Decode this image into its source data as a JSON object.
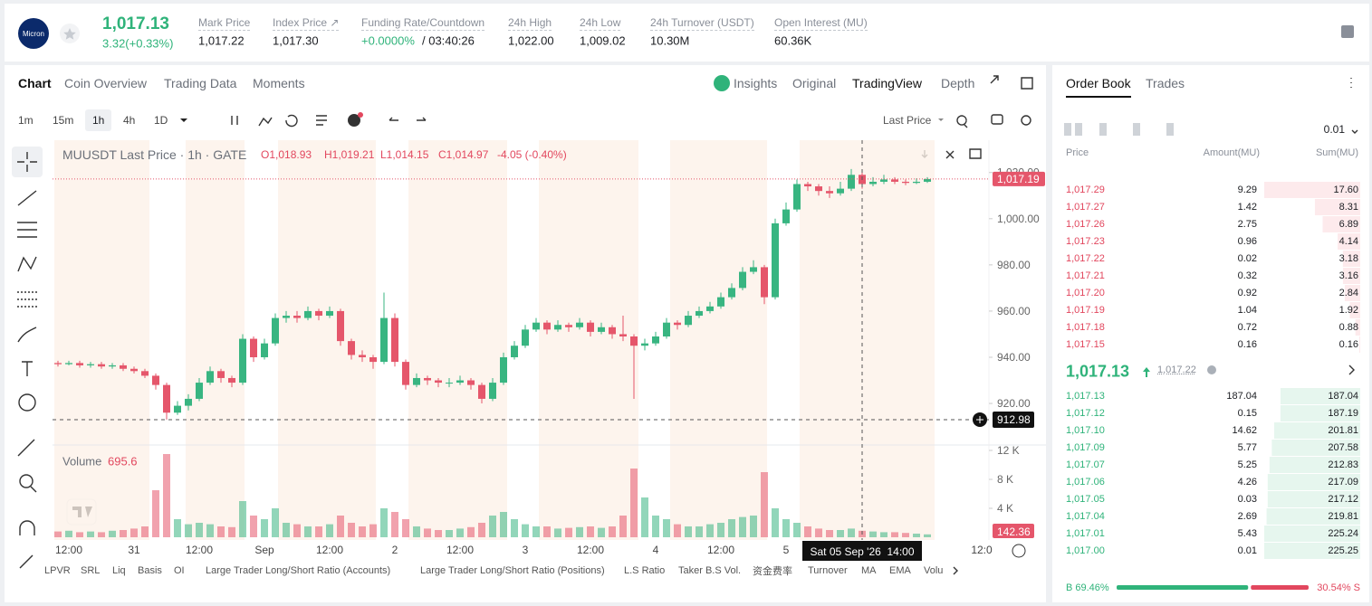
{
  "header": {
    "logo": "Micron",
    "price": "1,017.13",
    "change": "3.32(+0.33%)",
    "stats": [
      {
        "label": "Mark Price",
        "value": "1,017.22"
      },
      {
        "label": "Index Price ↗",
        "value": "1,017.30"
      },
      {
        "label": "Funding Rate/Countdown",
        "value": "+0.0000%",
        "countdown": "/ 03:40:26"
      },
      {
        "label": "24h High",
        "value": "1,022.00"
      },
      {
        "label": "24h Low",
        "value": "1,009.02"
      },
      {
        "label": "24h Turnover (USDT)",
        "value": "10.30M"
      },
      {
        "label": "Open Interest (MU)",
        "value": "60.36K"
      }
    ]
  },
  "chart_tabs": [
    "Chart",
    "Coin Overview",
    "Trading Data",
    "Moments"
  ],
  "view_tabs": [
    "Insights",
    "Original",
    "TradingView",
    "Depth"
  ],
  "intervals": [
    "1m",
    "15m",
    "1h",
    "4h",
    "1D"
  ],
  "price_source": "Last Price",
  "indicators": [
    "LPVR",
    "SRL",
    "Liq",
    "Basis",
    "OI",
    "Large Trader Long/Short Ratio (Accounts)",
    "Large Trader Long/Short Ratio (Positions)",
    "L.S Ratio",
    "Taker B.S Vol.",
    "资金费率",
    "Turnover",
    "MA",
    "EMA",
    "Volu"
  ],
  "chart_data": {
    "type": "candlestick",
    "title": "MUUSDT Last Price · 1h · GATE",
    "ohlc_labels": [
      "O1,018.93",
      "H1,019.21",
      "L1,014.15",
      "C1,014.97"
    ],
    "change": "-4.05 (-0.40%)",
    "colors": {
      "up": "#38b581",
      "down": "#e5566b"
    },
    "candles": [
      [
        937.5,
        938.5,
        936,
        937
      ],
      [
        937,
        938.5,
        936.5,
        937.5
      ],
      [
        937.5,
        938.5,
        935.5,
        936.5
      ],
      [
        936.5,
        938,
        935.5,
        937
      ],
      [
        937,
        938,
        935,
        936
      ],
      [
        936,
        937.5,
        935,
        936.5
      ],
      [
        936.5,
        937.5,
        934,
        935
      ],
      [
        935,
        936,
        933,
        934
      ],
      [
        934,
        935,
        931,
        932
      ],
      [
        932,
        933,
        926,
        928
      ],
      [
        928,
        929,
        913,
        916
      ],
      [
        916,
        921,
        915,
        919
      ],
      [
        919,
        924,
        917,
        922
      ],
      [
        922,
        931,
        921,
        929
      ],
      [
        929,
        936,
        928,
        934
      ],
      [
        934,
        935,
        929,
        931
      ],
      [
        931,
        932,
        927,
        929
      ],
      [
        929,
        950,
        928,
        948
      ],
      [
        948,
        949,
        938,
        940
      ],
      [
        940,
        948,
        939,
        946
      ],
      [
        946,
        959,
        945,
        957
      ],
      [
        957,
        960,
        955,
        958
      ],
      [
        958,
        960,
        955,
        957
      ],
      [
        957,
        962,
        956,
        960
      ],
      [
        960,
        961,
        956,
        958
      ],
      [
        958,
        962,
        957,
        960
      ],
      [
        960,
        961,
        945,
        947
      ],
      [
        947,
        948,
        939,
        941
      ],
      [
        941,
        943,
        938,
        940
      ],
      [
        940,
        941,
        935,
        938
      ],
      [
        938,
        968,
        937,
        957
      ],
      [
        957,
        959,
        936,
        938
      ],
      [
        938,
        939,
        926,
        928
      ],
      [
        928,
        933,
        927,
        931
      ],
      [
        931,
        932,
        928,
        930
      ],
      [
        930,
        931,
        927,
        929
      ],
      [
        929,
        931,
        927,
        929
      ],
      [
        929,
        932,
        928,
        930
      ],
      [
        930,
        931,
        926,
        928
      ],
      [
        928,
        929,
        920,
        922
      ],
      [
        922,
        931,
        921,
        929
      ],
      [
        929,
        942,
        928,
        940
      ],
      [
        940,
        947,
        939,
        945
      ],
      [
        945,
        954,
        944,
        952
      ],
      [
        952,
        957,
        951,
        955
      ],
      [
        955,
        956,
        950,
        952
      ],
      [
        952,
        956,
        951,
        954
      ],
      [
        954,
        955,
        951,
        953
      ],
      [
        953,
        957,
        952,
        955
      ],
      [
        955,
        956,
        949,
        951
      ],
      [
        951,
        955,
        950,
        953
      ],
      [
        953,
        954,
        948,
        950
      ],
      [
        950,
        958,
        947,
        949
      ],
      [
        949,
        950,
        922,
        945
      ],
      [
        945,
        948,
        943,
        946
      ],
      [
        946,
        951,
        945,
        949
      ],
      [
        949,
        957,
        948,
        955
      ],
      [
        955,
        956,
        952,
        954
      ],
      [
        954,
        960,
        953,
        958
      ],
      [
        958,
        962,
        957,
        960
      ],
      [
        960,
        964,
        959,
        962
      ],
      [
        962,
        968,
        961,
        966
      ],
      [
        966,
        972,
        965,
        970
      ],
      [
        970,
        979,
        969,
        977
      ],
      [
        977,
        982,
        976,
        979
      ],
      [
        979,
        980,
        963,
        966
      ],
      [
        966,
        1000,
        965,
        998
      ],
      [
        998,
        1007,
        997,
        1004
      ],
      [
        1004,
        1017,
        1003,
        1015
      ],
      [
        1015,
        1016,
        1012,
        1014
      ],
      [
        1014,
        1015,
        1010,
        1012
      ],
      [
        1012,
        1014,
        1009,
        1011
      ],
      [
        1011,
        1016,
        1010,
        1013
      ],
      [
        1013,
        1021.5,
        1012,
        1019
      ],
      [
        1019,
        1020,
        1013,
        1015
      ],
      [
        1015,
        1018,
        1014,
        1016
      ],
      [
        1016,
        1019,
        1015,
        1017
      ],
      [
        1017,
        1018,
        1015,
        1016
      ],
      [
        1016,
        1017,
        1014.5,
        1015.5
      ],
      [
        1015.5,
        1017.5,
        1015,
        1016
      ],
      [
        1016,
        1018,
        1015.5,
        1017.19
      ]
    ],
    "ylim": [
      902,
      1034
    ],
    "yticks": [
      {
        "value": 1020,
        "label": "1,020.00"
      },
      {
        "value": 1000,
        "label": "1,000.00"
      },
      {
        "value": 980,
        "label": "980.00"
      },
      {
        "value": 960,
        "label": "960.00"
      },
      {
        "value": 940,
        "label": "940.00"
      },
      {
        "value": 920,
        "label": "920.00"
      }
    ],
    "last_price": {
      "value": 1017.19,
      "label": "1,017.19"
    },
    "crosshair": {
      "value": 912.98,
      "label": "912.98",
      "time": "Sat 05 Sep '26  14:00"
    },
    "xlabels": [
      "12:00",
      "31",
      "12:00",
      "Sep",
      "12:00",
      "2",
      "12:00",
      "3",
      "12:00",
      "4",
      "12:00",
      "5",
      null,
      null,
      "12:0"
    ],
    "volume": {
      "title": "Volume",
      "current": "695.6",
      "last_label": "142.36",
      "values": [
        800,
        900,
        700,
        800,
        700,
        900,
        1000,
        1200,
        1500,
        6500,
        11500,
        2500,
        1800,
        2000,
        1800,
        1500,
        1400,
        5000,
        3000,
        2500,
        4000,
        2000,
        1800,
        1500,
        1500,
        1800,
        3000,
        2000,
        1500,
        1800,
        4000,
        3500,
        2500,
        1500,
        1200,
        1000,
        1000,
        1200,
        1400,
        2000,
        3000,
        3500,
        2500,
        1800,
        1500,
        1500,
        1200,
        1300,
        1400,
        1500,
        1300,
        1500,
        3000,
        9500,
        5500,
        3000,
        2500,
        1800,
        1500,
        1500,
        1800,
        2000,
        2500,
        2800,
        3000,
        9000,
        4000,
        2500,
        2000,
        1500,
        1200,
        1000,
        1000,
        1200,
        900,
        800,
        700,
        700,
        600,
        500,
        400
      ],
      "ylim": [
        0,
        12750
      ],
      "yticks": [
        {
          "value": 12000,
          "label": "12 K"
        },
        {
          "value": 8000,
          "label": "8 K"
        },
        {
          "value": 4000,
          "label": "4 K"
        }
      ]
    }
  },
  "order_book": {
    "tabs": [
      "Order Book",
      "Trades"
    ],
    "precision": "0.01",
    "headers": [
      "Price",
      "Amount(MU)",
      "Sum(MU)"
    ],
    "asks": [
      [
        "1,017.29",
        "9.29",
        "17.60"
      ],
      [
        "1,017.27",
        "1.42",
        "8.31"
      ],
      [
        "1,017.26",
        "2.75",
        "6.89"
      ],
      [
        "1,017.23",
        "0.96",
        "4.14"
      ],
      [
        "1,017.22",
        "0.02",
        "3.18"
      ],
      [
        "1,017.21",
        "0.32",
        "3.16"
      ],
      [
        "1,017.20",
        "0.92",
        "2.84"
      ],
      [
        "1,017.19",
        "1.04",
        "1.92"
      ],
      [
        "1,017.18",
        "0.72",
        "0.88"
      ],
      [
        "1,017.15",
        "0.16",
        "0.16"
      ]
    ],
    "mid_price": "1,017.13",
    "mark_price": "1,017.22",
    "bids": [
      [
        "1,017.13",
        "187.04",
        "187.04"
      ],
      [
        "1,017.12",
        "0.15",
        "187.19"
      ],
      [
        "1,017.10",
        "14.62",
        "201.81"
      ],
      [
        "1,017.09",
        "5.77",
        "207.58"
      ],
      [
        "1,017.07",
        "5.25",
        "212.83"
      ],
      [
        "1,017.06",
        "4.26",
        "217.09"
      ],
      [
        "1,017.05",
        "0.03",
        "217.12"
      ],
      [
        "1,017.04",
        "2.69",
        "219.81"
      ],
      [
        "1,017.01",
        "5.43",
        "225.24"
      ],
      [
        "1,017.00",
        "0.01",
        "225.25"
      ]
    ],
    "buy_ratio": {
      "value": 69.46,
      "label": "B 69.46%"
    },
    "sell_ratio": {
      "value": 30.54,
      "label": "30.54% S"
    }
  }
}
